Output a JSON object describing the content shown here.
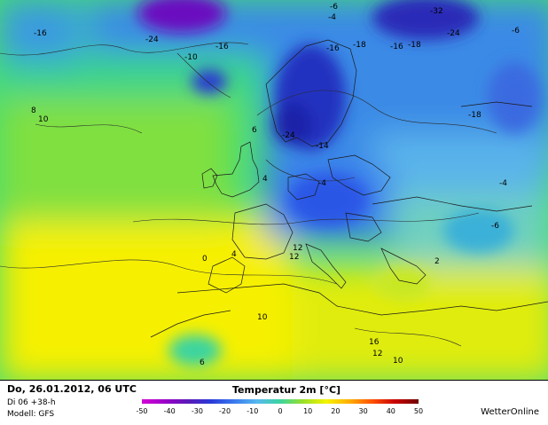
{
  "chart_data": {
    "type": "heatmap",
    "title": "Temperatur 2m [°C]",
    "colorbar": {
      "ticks": [
        -50,
        -40,
        -30,
        -20,
        -10,
        0,
        10,
        20,
        30,
        40,
        50
      ],
      "colors": [
        "#d600d6",
        "#9a00c8",
        "#5a1ab8",
        "#2a3ad8",
        "#3a7aee",
        "#58b8ee",
        "#3cd4a0",
        "#9ae028",
        "#f4f400",
        "#ffae00",
        "#ff5000",
        "#c80000",
        "#700000"
      ]
    },
    "isotherm_labels": [
      "-16",
      "-24",
      "-16",
      "-10",
      "-24",
      "-16",
      "-18",
      "-14",
      "-16",
      "-18",
      "-6",
      "-4",
      "-32",
      "-24",
      "-6",
      "-18",
      "-4",
      "-4",
      "-6",
      "2",
      "4",
      "0",
      "4",
      "12",
      "12",
      "6",
      "10",
      "16",
      "12",
      "10",
      "6",
      "8",
      "10"
    ]
  },
  "footer": {
    "date": "Do, 26.01.2012, 06 UTC",
    "run": "Di 06 +38-h",
    "model": "Modell: GFS",
    "brand": "WetterOnline"
  }
}
